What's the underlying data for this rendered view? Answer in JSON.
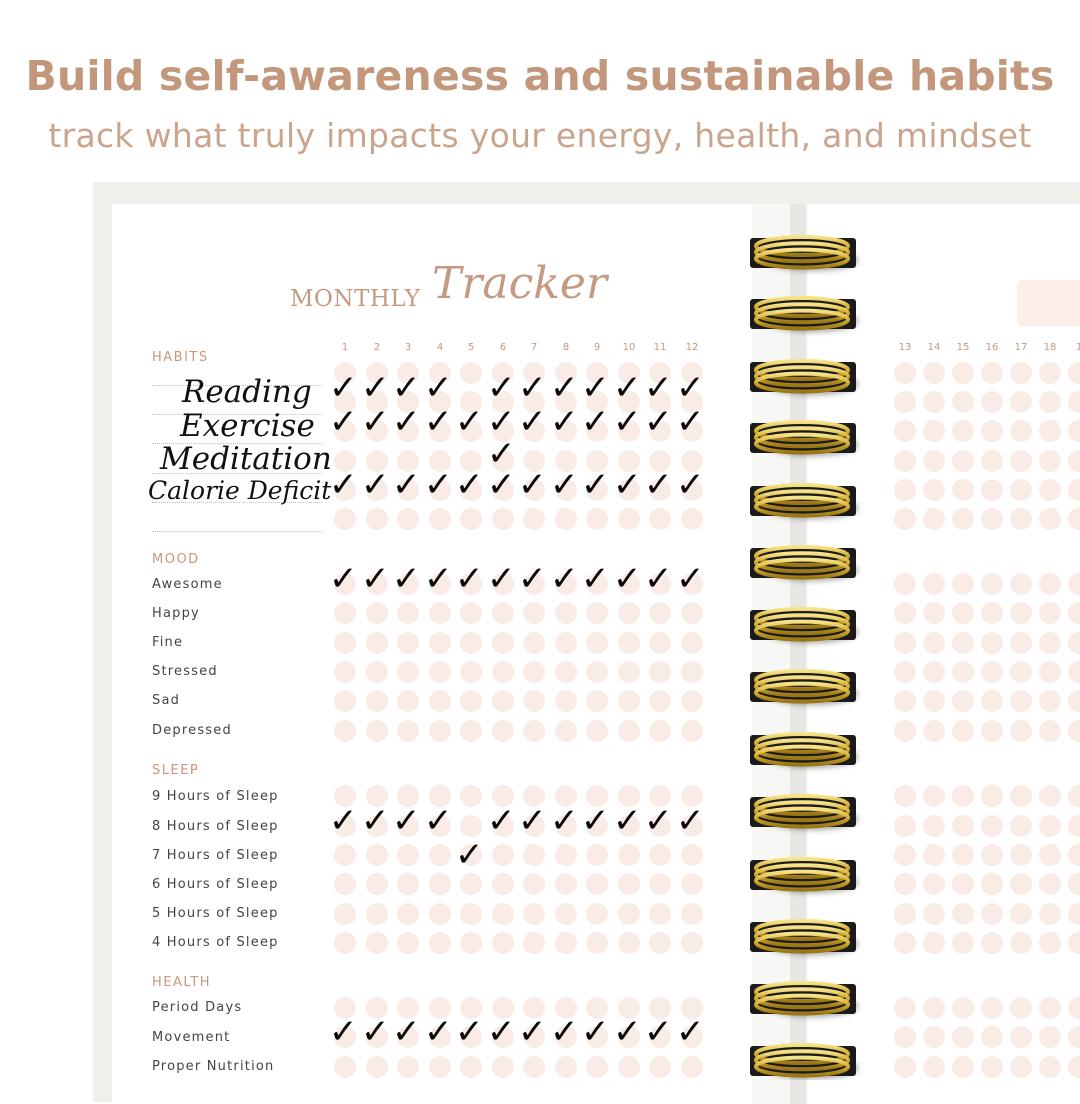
{
  "headline": "Build self-awareness and sustainable habits",
  "subline": "track what truly impacts your energy, health, and mindset",
  "title": {
    "monthly": "MONTHLY",
    "tracker": "Tracker"
  },
  "left_days": [
    "1",
    "2",
    "3",
    "4",
    "5",
    "6",
    "7",
    "8",
    "9",
    "10",
    "11",
    "12"
  ],
  "right_days": [
    "13",
    "14",
    "15",
    "16",
    "17",
    "18",
    "1"
  ],
  "sections": {
    "habits": "HABITS",
    "mood": "MOOD",
    "sleep": "SLEEP",
    "health": "HEALTH"
  },
  "habits": [
    "Reading",
    "Exercise",
    "Meditation",
    "Calorie Deficit"
  ],
  "mood": [
    "Awesome",
    "Happy",
    "Fine",
    "Stressed",
    "Sad",
    "Depressed"
  ],
  "sleep": [
    "9 Hours of Sleep",
    "8 Hours of Sleep",
    "7 Hours of Sleep",
    "6 Hours of Sleep",
    "5 Hours of Sleep",
    "4 Hours of Sleep"
  ],
  "health": [
    "Period Days",
    "Movement",
    "Proper Nutrition"
  ],
  "checkmark_glyph": "✓",
  "colors": {
    "accent": "#c2977b",
    "circle": "#f9ebe5",
    "ring_gold": "#d9b43a"
  }
}
